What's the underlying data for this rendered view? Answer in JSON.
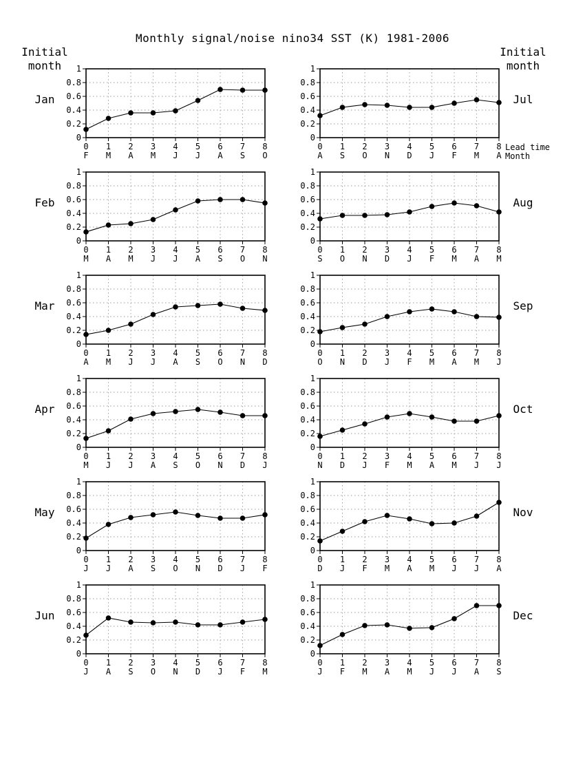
{
  "chart_data": {
    "type": "line",
    "title": "Monthly signal/noise   nino34 SST (K)  1981-2006",
    "side_header": [
      "Initial",
      "month"
    ],
    "xlabel": [
      "Lead time",
      "Month"
    ],
    "ylim": [
      0,
      1
    ],
    "yticks": [
      "0",
      "0.2",
      "0.4",
      "0.6",
      "0.8",
      "1"
    ],
    "xticks": [
      "0",
      "1",
      "2",
      "3",
      "4",
      "5",
      "6",
      "7",
      "8"
    ],
    "grid": true,
    "panels": [
      {
        "initial_month": "Jan",
        "target_months": [
          "F",
          "M",
          "A",
          "M",
          "J",
          "J",
          "A",
          "S",
          "O"
        ],
        "values": [
          0.12,
          0.28,
          0.36,
          0.36,
          0.39,
          0.54,
          0.7,
          0.69,
          0.69
        ]
      },
      {
        "initial_month": "Feb",
        "target_months": [
          "M",
          "A",
          "M",
          "J",
          "J",
          "A",
          "S",
          "O",
          "N"
        ],
        "values": [
          0.13,
          0.23,
          0.25,
          0.31,
          0.45,
          0.58,
          0.6,
          0.6,
          0.55
        ]
      },
      {
        "initial_month": "Mar",
        "target_months": [
          "A",
          "M",
          "J",
          "J",
          "A",
          "S",
          "O",
          "N",
          "D"
        ],
        "values": [
          0.14,
          0.2,
          0.29,
          0.43,
          0.54,
          0.56,
          0.58,
          0.52,
          0.49
        ]
      },
      {
        "initial_month": "Apr",
        "target_months": [
          "M",
          "J",
          "J",
          "A",
          "S",
          "O",
          "N",
          "D",
          "J"
        ],
        "values": [
          0.13,
          0.24,
          0.41,
          0.49,
          0.52,
          0.55,
          0.51,
          0.46,
          0.46
        ]
      },
      {
        "initial_month": "May",
        "target_months": [
          "J",
          "J",
          "A",
          "S",
          "O",
          "N",
          "D",
          "J",
          "F"
        ],
        "values": [
          0.18,
          0.38,
          0.48,
          0.52,
          0.56,
          0.51,
          0.47,
          0.47,
          0.52
        ]
      },
      {
        "initial_month": "Jun",
        "target_months": [
          "J",
          "A",
          "S",
          "O",
          "N",
          "D",
          "J",
          "F",
          "M"
        ],
        "values": [
          0.27,
          0.52,
          0.46,
          0.45,
          0.46,
          0.42,
          0.42,
          0.46,
          0.5
        ]
      },
      {
        "initial_month": "Jul",
        "target_months": [
          "A",
          "S",
          "O",
          "N",
          "D",
          "J",
          "F",
          "M",
          "A"
        ],
        "values": [
          0.32,
          0.44,
          0.48,
          0.47,
          0.44,
          0.44,
          0.5,
          0.55,
          0.51
        ]
      },
      {
        "initial_month": "Aug",
        "target_months": [
          "S",
          "O",
          "N",
          "D",
          "J",
          "F",
          "M",
          "A",
          "M"
        ],
        "values": [
          0.32,
          0.37,
          0.37,
          0.38,
          0.42,
          0.5,
          0.55,
          0.51,
          0.42
        ]
      },
      {
        "initial_month": "Sep",
        "target_months": [
          "O",
          "N",
          "D",
          "J",
          "F",
          "M",
          "A",
          "M",
          "J"
        ],
        "values": [
          0.18,
          0.24,
          0.29,
          0.4,
          0.47,
          0.51,
          0.47,
          0.4,
          0.39
        ]
      },
      {
        "initial_month": "Oct",
        "target_months": [
          "N",
          "D",
          "J",
          "F",
          "M",
          "A",
          "M",
          "J",
          "J"
        ],
        "values": [
          0.16,
          0.25,
          0.34,
          0.44,
          0.49,
          0.44,
          0.38,
          0.38,
          0.46
        ]
      },
      {
        "initial_month": "Nov",
        "target_months": [
          "D",
          "J",
          "F",
          "M",
          "A",
          "M",
          "J",
          "J",
          "A"
        ],
        "values": [
          0.14,
          0.28,
          0.42,
          0.51,
          0.46,
          0.39,
          0.4,
          0.5,
          0.7
        ]
      },
      {
        "initial_month": "Dec",
        "target_months": [
          "J",
          "F",
          "M",
          "A",
          "M",
          "J",
          "J",
          "A",
          "S"
        ],
        "values": [
          0.12,
          0.28,
          0.41,
          0.42,
          0.37,
          0.38,
          0.51,
          0.7,
          0.7
        ]
      }
    ]
  }
}
